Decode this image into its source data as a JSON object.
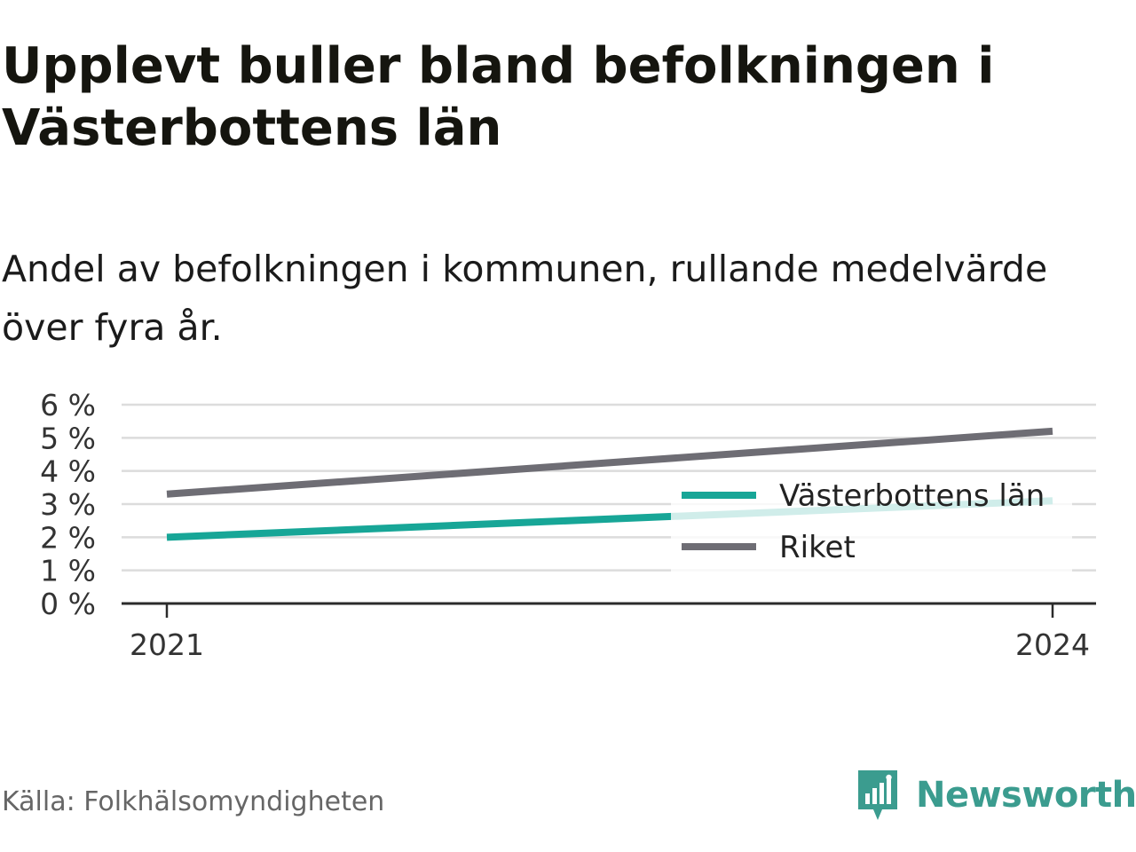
{
  "title": "Upplevt buller bland befolkningen i Västerbottens län",
  "subtitle": "Andel av befolkningen i kommunen, rullande medelvärde över fyra år.",
  "source": "Källa: Folkhälsomyndigheten",
  "brand": {
    "name": "Newsworthy",
    "icon": "newsworthy-logo-icon",
    "color": "#3b9c8f"
  },
  "chart_data": {
    "type": "line",
    "x": [
      2021,
      2024
    ],
    "x_tick_labels": [
      "2021",
      "2024"
    ],
    "y_tick_labels": [
      "0 %",
      "1 %",
      "2 %",
      "3 %",
      "4 %",
      "5 %",
      "6 %"
    ],
    "ylim": [
      0,
      6
    ],
    "grid": true,
    "legend_position": "right",
    "series": [
      {
        "name": "Västerbottens län",
        "values": [
          2.0,
          3.1
        ],
        "color": "#17a697"
      },
      {
        "name": "Riket",
        "values": [
          3.3,
          5.2
        ],
        "color": "#6e6d74"
      }
    ]
  }
}
